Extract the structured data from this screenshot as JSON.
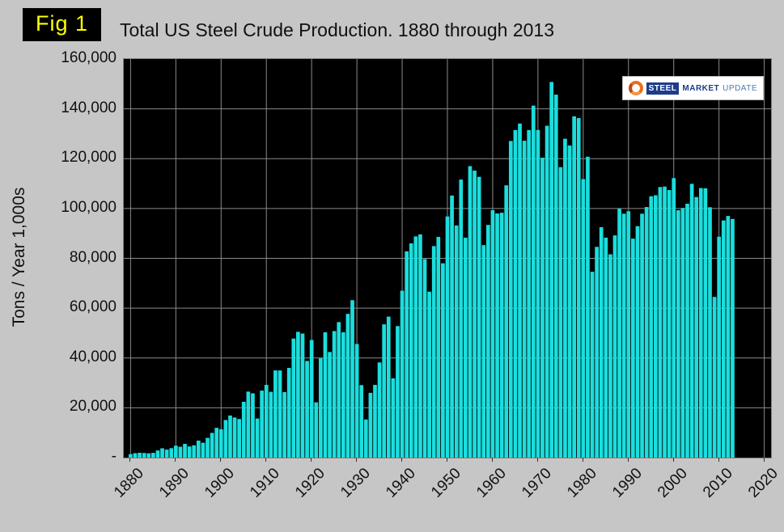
{
  "fig_label": "Fig 1",
  "title": "Total US Steel Crude Production. 1880 through 2013",
  "logo": {
    "text": [
      "STEEL",
      "MARKET",
      "UPDATE"
    ]
  },
  "chart_data": {
    "type": "bar",
    "title": "Total US Steel Crude Production. 1880 through 2013",
    "xlabel": "",
    "ylabel": "Tons / Year 1,000s",
    "start_year": 1880,
    "end_year": 2013,
    "xlim": [
      1878.5,
      2021.5
    ],
    "ylim": [
      0,
      160000
    ],
    "x_ticks": [
      1880,
      1890,
      1900,
      1910,
      1920,
      1930,
      1940,
      1950,
      1960,
      1970,
      1980,
      1990,
      2000,
      2010,
      2020
    ],
    "y_ticks": [
      {
        "value": 0,
        "label": "-"
      },
      {
        "value": 20000,
        "label": "20,000"
      },
      {
        "value": 40000,
        "label": "40,000"
      },
      {
        "value": 60000,
        "label": "60,000"
      },
      {
        "value": 80000,
        "label": "80,000"
      },
      {
        "value": 100000,
        "label": "100,000"
      },
      {
        "value": 120000,
        "label": "120,000"
      },
      {
        "value": 140000,
        "label": "140,000"
      },
      {
        "value": 160000,
        "label": "160,000"
      }
    ],
    "grid": true,
    "legend": "none",
    "plot_bg": "#000000",
    "grid_color": "#8a8a8a",
    "bar_color": "#1bdede",
    "values": [
      1397,
      1778,
      1945,
      1874,
      1737,
      1917,
      2870,
      3740,
      3210,
      3792,
      4790,
      4365,
      5515,
      4478,
      4932,
      6834,
      5978,
      7930,
      9920,
      11960,
      11400,
      15100,
      16900,
      16100,
      15500,
      22400,
      26500,
      25800,
      15700,
      26900,
      29200,
      26400,
      35000,
      35000,
      26300,
      36000,
      47800,
      50500,
      49800,
      38800,
      47200,
      22200,
      39900,
      50300,
      42400,
      50800,
      54400,
      50300,
      57700,
      63200,
      45600,
      29100,
      15300,
      26000,
      29200,
      38200,
      53500,
      56600,
      31800,
      52800,
      67000,
      82800,
      86000,
      88800,
      89600,
      79700,
      66600,
      84900,
      88600,
      78000,
      96800,
      105200,
      93200,
      111600,
      88300,
      117000,
      115200,
      112700,
      85300,
      93400,
      99300,
      98000,
      98300,
      109300,
      127100,
      131500,
      134100,
      127200,
      131500,
      141300,
      131500,
      120400,
      133200,
      150800,
      145700,
      116600,
      128000,
      125300,
      137000,
      136300,
      111800,
      120800,
      74600,
      84600,
      92500,
      88300,
      81600,
      89200,
      99900,
      97900,
      98900,
      87900,
      92900,
      97900,
      100600,
      104900,
      105300,
      108600,
      108800,
      107400,
      112200,
      99300,
      100200,
      101900,
      109900,
      104600,
      108200,
      108100,
      100500,
      64500,
      88700,
      95200,
      97000,
      95800
    ]
  }
}
